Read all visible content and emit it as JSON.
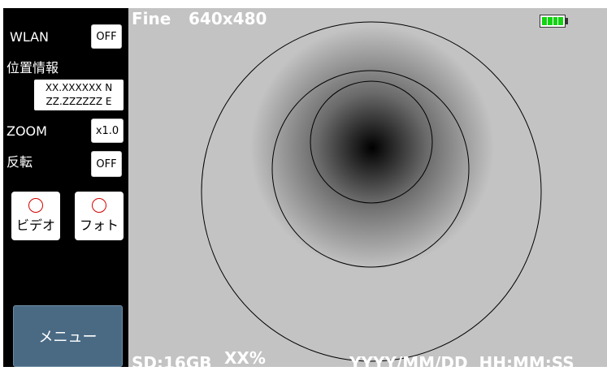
{
  "sidebar": {
    "wlan_label": "WLAN",
    "wlan_value": "OFF",
    "location_label": "位置情報",
    "lat": "XX.XXXXXX N",
    "lon": "ZZ.ZZZZZZ E",
    "zoom_label": "ZOOM",
    "zoom_value": "x1.0",
    "flip_label": "反転",
    "flip_value": "OFF",
    "video_label": "ビデオ",
    "photo_label": "フォト",
    "menu_label": "メニュー"
  },
  "osd": {
    "quality": "Fine",
    "resolution": "640x480",
    "storage": "SD:16GB",
    "storage_pct": "XX%",
    "datetime": "YYYY/MM/DD  HH:MM:SS"
  },
  "battery": {
    "level_cells": 4,
    "fill_color": "#13d313"
  },
  "icons": [
    "record-ring-icon",
    "battery-icon"
  ],
  "colors": {
    "sidebar_bg": "#000000",
    "viewfinder_bg": "#c3c3c3",
    "menu_bg": "#4a6a84",
    "accent_ring": "#d40000"
  }
}
